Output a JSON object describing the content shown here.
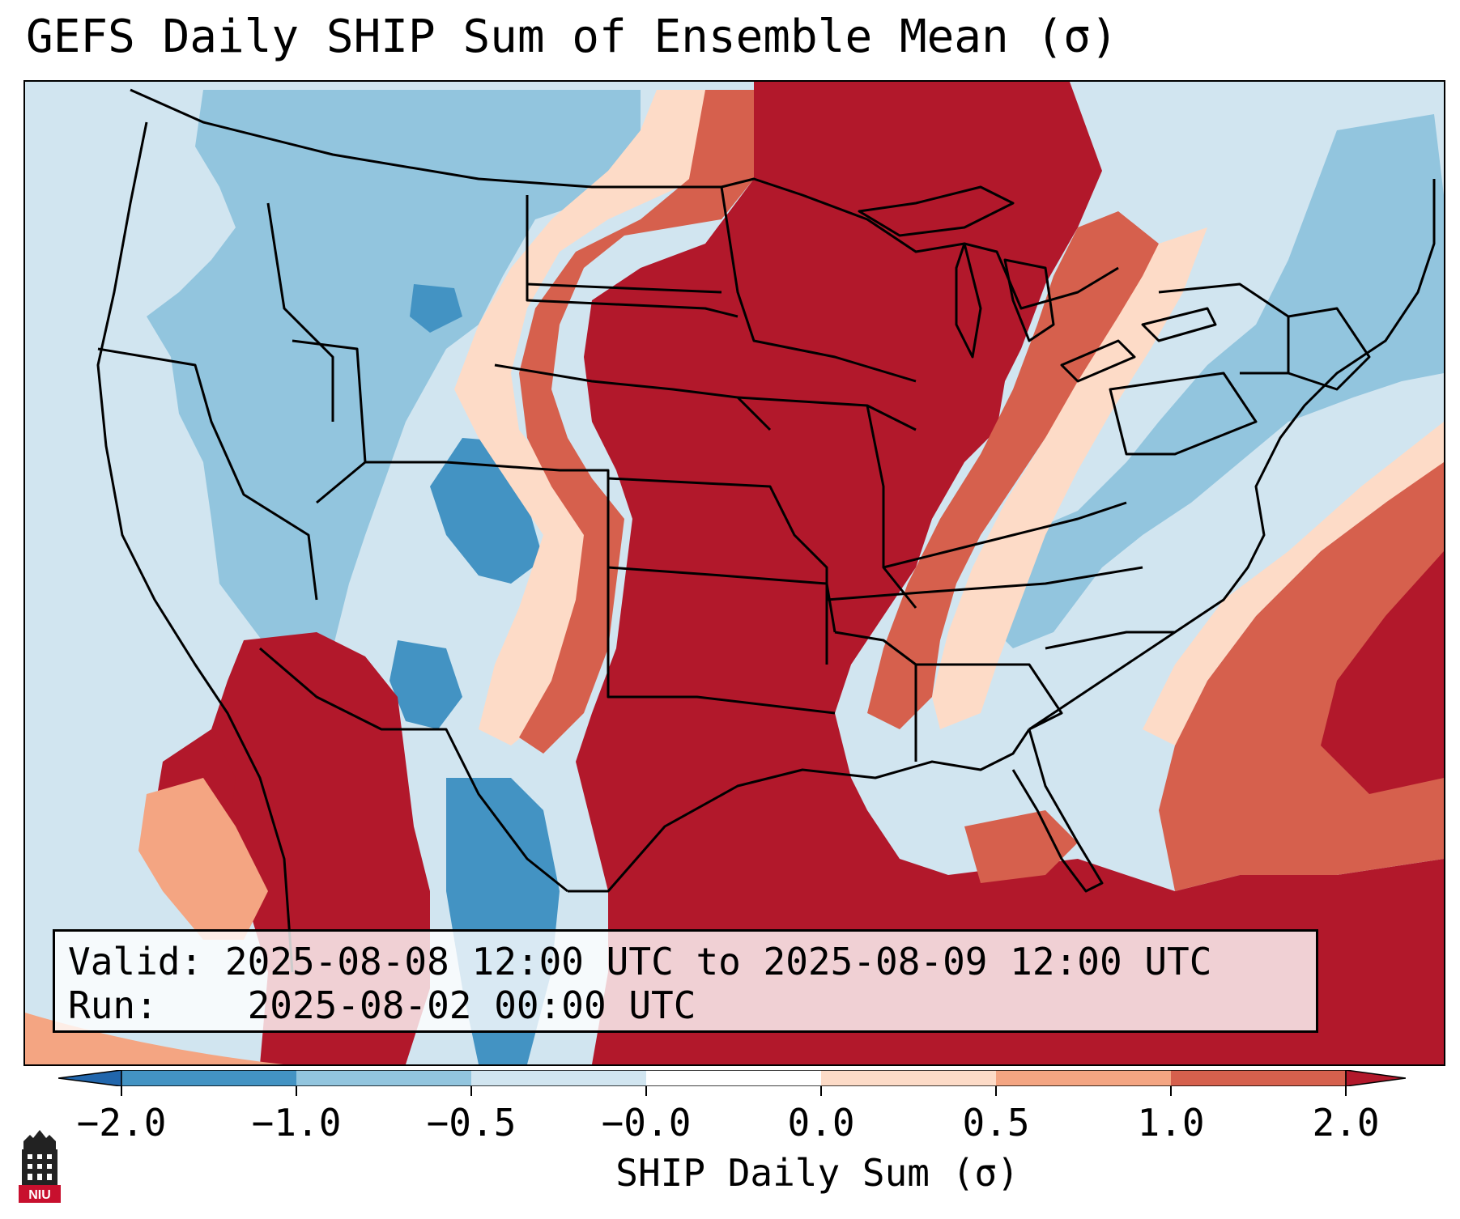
{
  "title": "GEFS Daily SHIP Sum of Ensemble Mean (σ)",
  "info": {
    "valid_label": "Valid:",
    "valid_value": "2025-08-08 12:00 UTC to 2025-08-09 12:00 UTC",
    "run_label": "Run:",
    "run_value": "2025-08-02 00:00 UTC"
  },
  "colorbar": {
    "label": "SHIP Daily Sum (σ)",
    "ticks": [
      "−2.0",
      "−1.0",
      "−0.5",
      "−0.0",
      "0.0",
      "0.5",
      "1.0",
      "2.0"
    ],
    "colors": {
      "lt_-2": "#2166ac",
      "-2_-1": "#4393c3",
      "-1_-0.5": "#92c5de",
      "-0.5_0": "#d1e5f0",
      "0_0": "#ffffff",
      "0_0.5": "#fddbc7",
      "0.5_1": "#f4a582",
      "1_2": "#d6604d",
      "gt_2": "#b2182b"
    }
  },
  "logo": {
    "text": "NIU",
    "icon": "university-tower-icon"
  },
  "map": {
    "projection": "lambert-conformal",
    "region": "Contiguous United States",
    "ocean_color": "#d1e5f0",
    "outside_color": "#ffffff"
  }
}
